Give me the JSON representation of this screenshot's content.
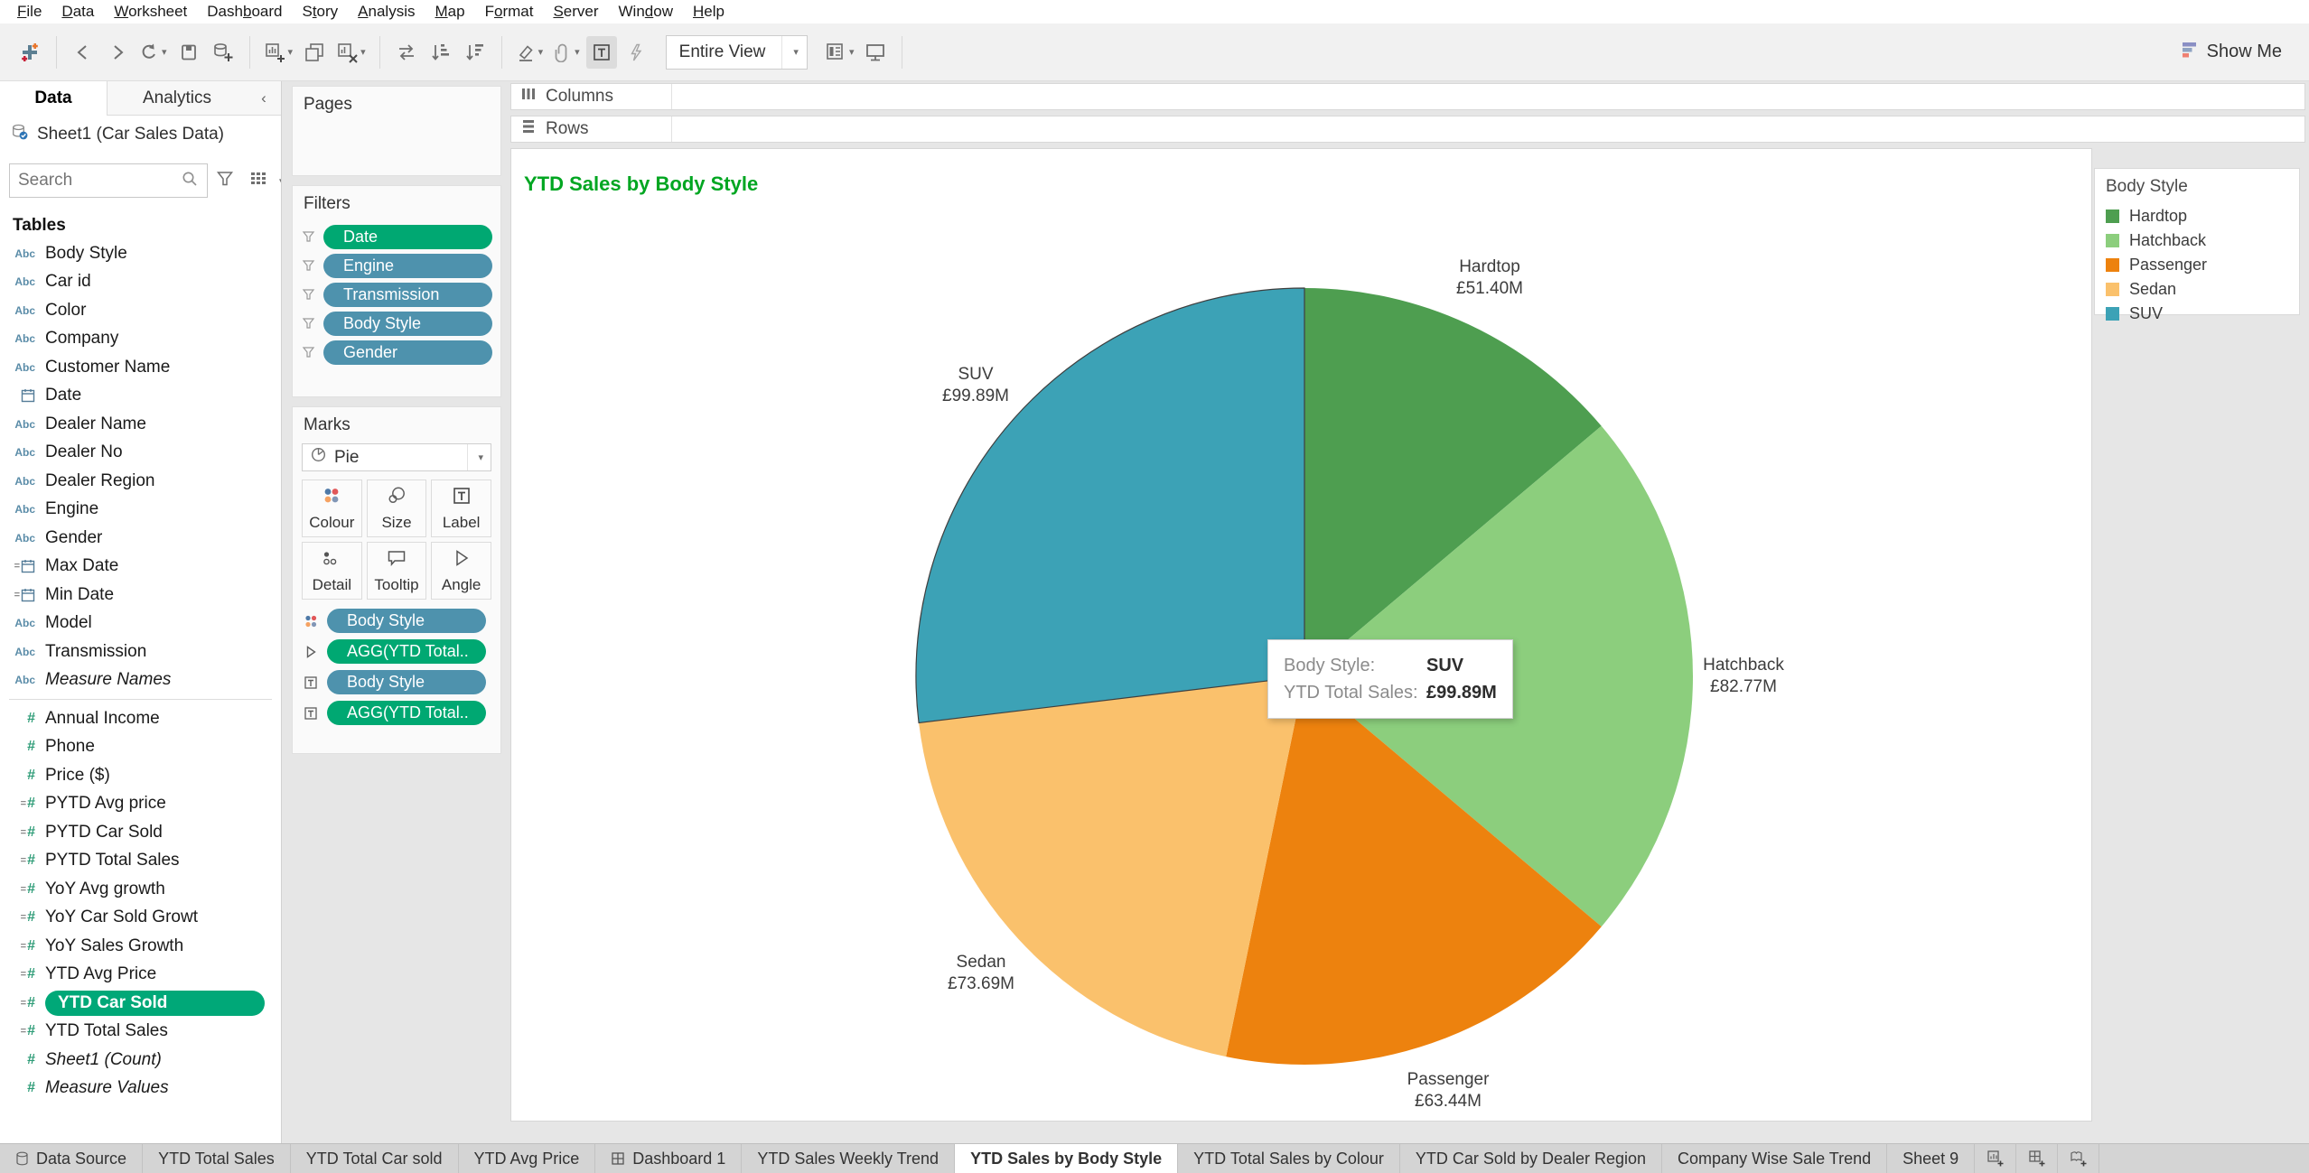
{
  "menu": {
    "items": [
      {
        "label": "File",
        "u": 0
      },
      {
        "label": "Data",
        "u": 0
      },
      {
        "label": "Worksheet",
        "u": 0
      },
      {
        "label": "Dashboard",
        "u": 4
      },
      {
        "label": "Story",
        "u": 1
      },
      {
        "label": "Analysis",
        "u": 0
      },
      {
        "label": "Map",
        "u": 0
      },
      {
        "label": "Format",
        "u": 1
      },
      {
        "label": "Server",
        "u": 0
      },
      {
        "label": "Window",
        "u": 3
      },
      {
        "label": "Help",
        "u": 0
      }
    ]
  },
  "toolbar": {
    "fit_value": "Entire View",
    "show_me_label": "Show Me"
  },
  "sidebar": {
    "data_tab": "Data",
    "analytics_tab": "Analytics",
    "datasource_name": "Sheet1 (Car Sales Data)",
    "search_placeholder": "Search",
    "tables_header": "Tables",
    "fields": [
      {
        "label": "Body Style",
        "icon": "abc"
      },
      {
        "label": "Car id",
        "icon": "abc"
      },
      {
        "label": "Color",
        "icon": "abc"
      },
      {
        "label": "Company",
        "icon": "abc"
      },
      {
        "label": "Customer Name",
        "icon": "abc"
      },
      {
        "label": "Date",
        "icon": "calendar"
      },
      {
        "label": "Dealer Name",
        "icon": "abc"
      },
      {
        "label": "Dealer No",
        "icon": "abc"
      },
      {
        "label": "Dealer Region",
        "icon": "abc"
      },
      {
        "label": "Engine",
        "icon": "abc"
      },
      {
        "label": "Gender",
        "icon": "abc"
      },
      {
        "label": "Max Date",
        "icon": "calc-calendar"
      },
      {
        "label": "Min Date",
        "icon": "calc-calendar"
      },
      {
        "label": "Model",
        "icon": "abc"
      },
      {
        "label": "Transmission",
        "icon": "abc"
      },
      {
        "label": "Measure Names",
        "icon": "abc",
        "italic": true,
        "divider_after": true
      },
      {
        "label": "Annual Income",
        "icon": "hash"
      },
      {
        "label": "Phone",
        "icon": "hash"
      },
      {
        "label": "Price ($)",
        "icon": "hash"
      },
      {
        "label": "PYTD Avg price",
        "icon": "calc-hash"
      },
      {
        "label": "PYTD Car Sold",
        "icon": "calc-hash"
      },
      {
        "label": "PYTD Total Sales",
        "icon": "calc-hash"
      },
      {
        "label": "YoY Avg growth",
        "icon": "calc-hash"
      },
      {
        "label": "YoY Car Sold Growt",
        "icon": "calc-hash"
      },
      {
        "label": "YoY Sales Growth",
        "icon": "calc-hash"
      },
      {
        "label": "YTD Avg Price",
        "icon": "calc-hash"
      },
      {
        "label": "YTD Car Sold",
        "icon": "calc-hash",
        "selected": true
      },
      {
        "label": "YTD Total Sales",
        "icon": "calc-hash"
      },
      {
        "label": "Sheet1 (Count)",
        "icon": "hash",
        "italic": true
      },
      {
        "label": "Measure Values",
        "icon": "hash",
        "italic": true
      }
    ]
  },
  "shelves": {
    "pages_label": "Pages",
    "filters_label": "Filters",
    "columns_label": "Columns",
    "rows_label": "Rows",
    "filter_pills": [
      {
        "label": "Date",
        "type": "green"
      },
      {
        "label": "Engine",
        "type": "blue"
      },
      {
        "label": "Transmission",
        "type": "blue"
      },
      {
        "label": "Body Style",
        "type": "blue"
      },
      {
        "label": "Gender",
        "type": "blue"
      }
    ]
  },
  "marks": {
    "header": "Marks",
    "mark_type": "Pie",
    "buttons": [
      {
        "label": "Colour",
        "icon": "colour"
      },
      {
        "label": "Size",
        "icon": "size"
      },
      {
        "label": "Label",
        "icon": "labelT"
      },
      {
        "label": "Detail",
        "icon": "detail"
      },
      {
        "label": "Tooltip",
        "icon": "tooltipb"
      },
      {
        "label": "Angle",
        "icon": "angle"
      }
    ],
    "pills": [
      {
        "icon": "colour",
        "label": "Body Style",
        "type": "blue"
      },
      {
        "icon": "angle",
        "label": "AGG(YTD Total..",
        "type": "green"
      },
      {
        "icon": "labelT",
        "label": "Body Style",
        "type": "blue"
      },
      {
        "icon": "labelT",
        "label": "AGG(YTD Total..",
        "type": "green"
      }
    ]
  },
  "worksheet": {
    "title": "YTD Sales by Body Style",
    "title_color": "#00A621"
  },
  "chart_data": {
    "type": "pie",
    "title": "YTD Sales by Body Style",
    "categories": [
      "Hardtop",
      "Hatchback",
      "Passenger",
      "Sedan",
      "SUV"
    ],
    "values": [
      51.4,
      82.77,
      63.44,
      73.69,
      99.89
    ],
    "value_labels": [
      "£51.40M",
      "£82.77M",
      "£63.44M",
      "£73.69M",
      "£99.89M"
    ],
    "unit": "GBP millions (YTD Total Sales)",
    "colors": [
      "#4E9E50",
      "#8CCE7D",
      "#ED820E",
      "#FAC16C",
      "#3CA2B6"
    ],
    "start_angle_deg": 0,
    "clockwise": true,
    "highlighted": "SUV",
    "legend_position": "right"
  },
  "tooltip": {
    "rows": [
      {
        "label": "Body Style:",
        "value": "SUV"
      },
      {
        "label": "YTD Total Sales:",
        "value": "£99.89M"
      }
    ]
  },
  "legend": {
    "title": "Body Style",
    "items": [
      {
        "label": "Hardtop",
        "color": "#4E9E50"
      },
      {
        "label": "Hatchback",
        "color": "#8CCE7D"
      },
      {
        "label": "Passenger",
        "color": "#ED820E"
      },
      {
        "label": "Sedan",
        "color": "#FAC16C"
      },
      {
        "label": "SUV",
        "color": "#3CA2B6"
      }
    ]
  },
  "sheet_tabs": {
    "items": [
      {
        "label": "Data Source",
        "icon": "datasource"
      },
      {
        "label": "YTD Total Sales"
      },
      {
        "label": "YTD Total Car sold"
      },
      {
        "label": "YTD Avg Price"
      },
      {
        "label": "Dashboard 1",
        "icon": "dashboard"
      },
      {
        "label": "YTD Sales Weekly Trend"
      },
      {
        "label": "YTD Sales by Body Style",
        "active": true
      },
      {
        "label": "YTD Total Sales by Colour"
      },
      {
        "label": "YTD Car Sold by Dealer Region"
      },
      {
        "label": "Company Wise Sale Trend"
      },
      {
        "label": "Sheet 9"
      }
    ]
  }
}
